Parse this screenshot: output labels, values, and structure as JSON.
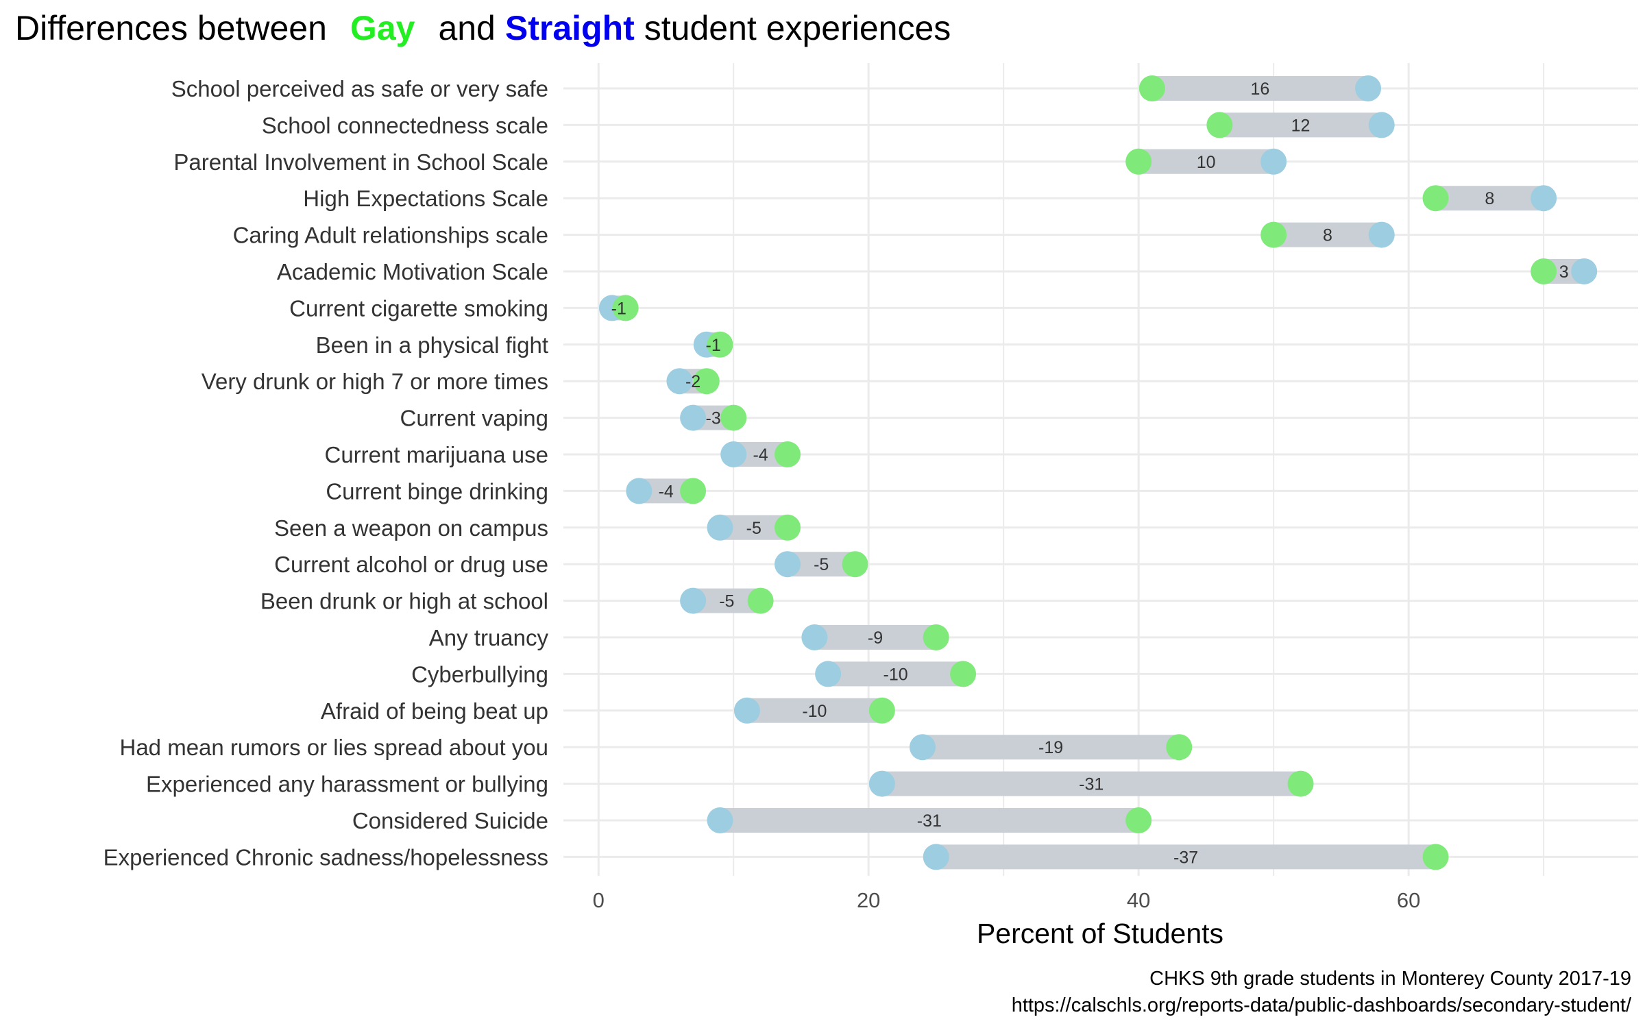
{
  "title": {
    "prefix": "Differences between",
    "gay": "Gay",
    "middle": "and",
    "straight": "Straight",
    "suffix": "student experiences"
  },
  "colors": {
    "gay": "#7fea7a",
    "straight": "#9ccde1",
    "title_gay": "#22ee22",
    "title_straight": "#0000ee",
    "segment": "#c9cfd5",
    "grid": "#ebebeb"
  },
  "caption": {
    "line1": "CHKS 9th grade students in Monterey County 2017-19",
    "line2": "https://calschls.org/reports-data/public-dashboards/secondary-student/"
  },
  "chart_data": {
    "type": "dumbbell",
    "xlabel": "Percent of Students",
    "ylabel": "",
    "xlim": [
      -2.6,
      77
    ],
    "xticks": [
      0,
      20,
      40,
      60
    ],
    "series": [
      {
        "name": "Gay"
      },
      {
        "name": "Straight"
      }
    ],
    "rows": [
      {
        "label": "School perceived as safe or very safe",
        "gay": 41,
        "straight": 57,
        "diff": "16"
      },
      {
        "label": "School connectedness scale",
        "gay": 46,
        "straight": 58,
        "diff": "12"
      },
      {
        "label": "Parental Involvement in School Scale",
        "gay": 40,
        "straight": 50,
        "diff": "10"
      },
      {
        "label": "High Expectations Scale",
        "gay": 62,
        "straight": 70,
        "diff": "8"
      },
      {
        "label": "Caring Adult relationships scale",
        "gay": 50,
        "straight": 58,
        "diff": "8"
      },
      {
        "label": "Academic Motivation Scale",
        "gay": 70,
        "straight": 73,
        "diff": "3"
      },
      {
        "label": "Current cigarette smoking",
        "gay": 2,
        "straight": 1,
        "diff": "-1"
      },
      {
        "label": "Been in a physical fight",
        "gay": 9,
        "straight": 8,
        "diff": "-1"
      },
      {
        "label": "Very drunk or high 7 or more times",
        "gay": 8,
        "straight": 6,
        "diff": "-2"
      },
      {
        "label": "Current vaping",
        "gay": 10,
        "straight": 7,
        "diff": "-3"
      },
      {
        "label": "Current marijuana use",
        "gay": 14,
        "straight": 10,
        "diff": "-4"
      },
      {
        "label": "Current binge drinking",
        "gay": 7,
        "straight": 3,
        "diff": "-4"
      },
      {
        "label": "Seen a weapon on campus",
        "gay": 14,
        "straight": 9,
        "diff": "-5"
      },
      {
        "label": "Current alcohol or drug use",
        "gay": 19,
        "straight": 14,
        "diff": "-5"
      },
      {
        "label": "Been drunk or high at school",
        "gay": 12,
        "straight": 7,
        "diff": "-5"
      },
      {
        "label": "Any truancy",
        "gay": 25,
        "straight": 16,
        "diff": "-9"
      },
      {
        "label": "Cyberbullying",
        "gay": 27,
        "straight": 17,
        "diff": "-10"
      },
      {
        "label": "Afraid of being beat up",
        "gay": 21,
        "straight": 11,
        "diff": "-10"
      },
      {
        "label": "Had mean rumors or lies spread about you",
        "gay": 43,
        "straight": 24,
        "diff": "-19"
      },
      {
        "label": "Experienced any harassment or bullying",
        "gay": 52,
        "straight": 21,
        "diff": "-31"
      },
      {
        "label": "Considered Suicide",
        "gay": 40,
        "straight": 9,
        "diff": "-31"
      },
      {
        "label": "Experienced Chronic sadness/hopelessness",
        "gay": 62,
        "straight": 25,
        "diff": "-37"
      }
    ]
  }
}
